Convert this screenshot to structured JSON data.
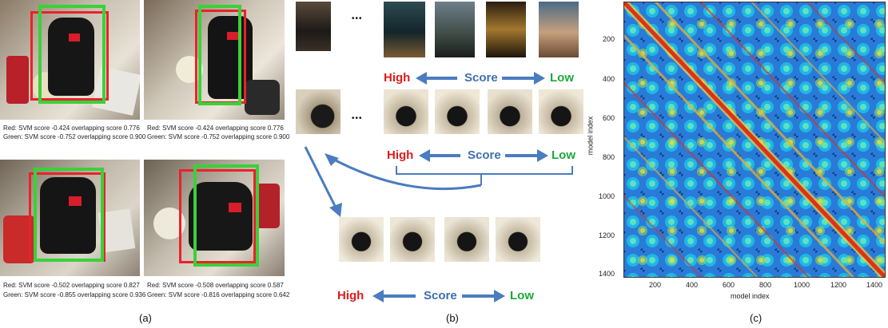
{
  "panel_a": {
    "label": "(a)",
    "images": [
      {
        "red_line": "Red: SVM score -0.424  overlapping score 0.776",
        "green_line": "Green: SVM score -0.752  overlapping score 0.900"
      },
      {
        "red_line": "Red: SVM score -0.424  overlapping score 0.776",
        "green_line": "Green: SVM score -0.752  overlapping score 0.900"
      },
      {
        "red_line": "Red: SVM score -0.502  overlapping score 0.827",
        "green_line": "Green: SVM score -0.855  overlapping score 0.936"
      },
      {
        "red_line": "Red: SVM score -0.508  overlapping score 0.587",
        "green_line": "Green: SVM score -0.816  overlapping score 0.642"
      }
    ],
    "colors": {
      "red_box": "#e8232a",
      "green_box": "#3ad13a"
    }
  },
  "panel_b": {
    "label": "(b)",
    "ellipsis": "•••",
    "rows": [
      {
        "high": "High",
        "score": "Score",
        "low": "Low"
      },
      {
        "high": "High",
        "score": "Score",
        "low": "Low"
      },
      {
        "high": "High",
        "score": "Score",
        "low": "Low"
      }
    ],
    "colors": {
      "high": "#e01b1b",
      "low": "#1ea83a",
      "score": "#3d6fae",
      "arrow": "#4a7cc0"
    }
  },
  "panel_c": {
    "label": "(c)",
    "xlabel": "model index",
    "ylabel": "model index",
    "xticks": [
      "200",
      "400",
      "600",
      "800",
      "1000",
      "1200",
      "1400"
    ],
    "yticks": [
      "200",
      "400",
      "600",
      "800",
      "1000",
      "1200",
      "1400"
    ]
  }
}
